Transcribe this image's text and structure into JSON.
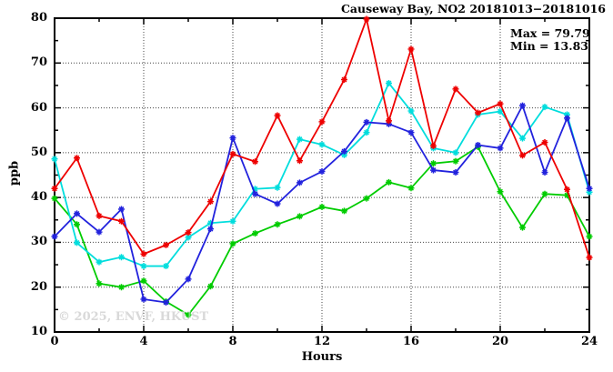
{
  "title": "Causeway Bay, NO2 20181013−20181016",
  "annotation": {
    "max_label": "Max = 79.79",
    "min_label": "Min = 13.83"
  },
  "watermark": "© 2025, ENVF, HKUST",
  "chart_data": {
    "type": "line",
    "title": "Causeway Bay, NO2 20181013−20181016",
    "xlabel": "Hours",
    "ylabel": "ppb",
    "xlim": [
      0,
      24
    ],
    "ylim": [
      10,
      80
    ],
    "x_major_ticks": [
      0,
      4,
      8,
      12,
      16,
      20,
      24
    ],
    "x_minor_ticks": [
      2,
      6,
      10,
      14,
      18,
      22
    ],
    "y_major_ticks": [
      10,
      20,
      30,
      40,
      50,
      60,
      70,
      80
    ],
    "y_minor_ticks": [
      15,
      25,
      35,
      45,
      55,
      65,
      75
    ],
    "grid": "dotted-major-both-axes",
    "legend_position": "none",
    "max_value": 79.79,
    "min_value": 13.83,
    "x": [
      0,
      1,
      2,
      3,
      4,
      5,
      6,
      7,
      8,
      9,
      10,
      11,
      12,
      13,
      14,
      15,
      16,
      17,
      18,
      19,
      20,
      21,
      22,
      23,
      24
    ],
    "series": [
      {
        "name": "series-green",
        "color": "#00cc00",
        "marker": "asterisk",
        "values": [
          39.8,
          34.0,
          20.8,
          20.0,
          21.4,
          16.8,
          13.83,
          20.2,
          29.7,
          32.0,
          34.0,
          35.8,
          37.9,
          37.0,
          39.8,
          43.4,
          42.1,
          47.6,
          48.1,
          51.3,
          41.3,
          33.3,
          40.8,
          40.5,
          31.3
        ]
      },
      {
        "name": "series-cyan",
        "color": "#00dddd",
        "marker": "asterisk",
        "values": [
          48.6,
          29.9,
          25.6,
          26.7,
          24.7,
          24.7,
          31.1,
          34.3,
          34.7,
          41.9,
          42.2,
          53.0,
          51.8,
          49.5,
          54.5,
          65.5,
          59.3,
          51.0,
          50.0,
          58.5,
          59.2,
          53.2,
          60.2,
          58.5,
          41.2
        ]
      },
      {
        "name": "series-blue",
        "color": "#2222dd",
        "marker": "asterisk",
        "values": [
          31.3,
          36.4,
          32.3,
          37.4,
          17.3,
          16.6,
          21.8,
          33.0,
          53.3,
          40.8,
          38.6,
          43.3,
          45.8,
          50.3,
          56.8,
          56.4,
          54.5,
          46.1,
          45.6,
          51.7,
          51.0,
          60.5,
          45.6,
          57.7,
          42.0
        ]
      },
      {
        "name": "series-red",
        "color": "#ee0000",
        "marker": "asterisk",
        "values": [
          42.0,
          48.8,
          35.9,
          34.7,
          27.4,
          29.4,
          32.2,
          39.1,
          49.7,
          48.0,
          58.3,
          48.2,
          56.9,
          66.3,
          79.79,
          57.1,
          73.1,
          51.5,
          64.2,
          58.9,
          60.9,
          49.4,
          52.3,
          41.8,
          26.6
        ]
      }
    ]
  },
  "style_colors": {
    "axis": "#000000",
    "grid": "#444444",
    "watermark_gray": "#d9d9d9"
  }
}
